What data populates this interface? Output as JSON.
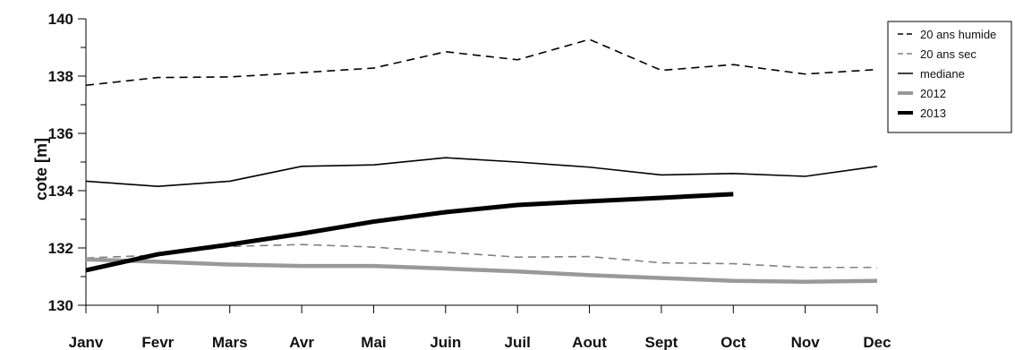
{
  "chart_data": {
    "type": "line",
    "title": "",
    "xlabel": "",
    "ylabel": "cote [m]",
    "categories": [
      "Janv",
      "Fevr",
      "Mars",
      "Avr",
      "Mai",
      "Juin",
      "Juil",
      "Aout",
      "Sept",
      "Oct",
      "Nov",
      "Dec"
    ],
    "ylim": [
      130,
      140
    ],
    "yticks": [
      130,
      132,
      134,
      136,
      138,
      140
    ],
    "grid": false,
    "legend_position": "top-right",
    "series": [
      {
        "name": "20 ans humide",
        "style": "dashed",
        "color": "#000000",
        "width": "thin",
        "values": [
          137.68,
          137.95,
          137.97,
          138.12,
          138.28,
          138.85,
          138.57,
          139.28,
          138.2,
          138.4,
          138.07,
          138.23
        ]
      },
      {
        "name": "20 ans sec",
        "style": "dashed",
        "color": "#808080",
        "width": "thin",
        "values": [
          131.65,
          131.75,
          132.05,
          132.12,
          132.03,
          131.85,
          131.68,
          131.7,
          131.48,
          131.45,
          131.32,
          131.32
        ]
      },
      {
        "name": "mediane",
        "style": "solid",
        "color": "#000000",
        "width": "thin",
        "values": [
          134.33,
          134.15,
          134.33,
          134.85,
          134.9,
          135.15,
          135.0,
          134.82,
          134.55,
          134.6,
          134.5,
          134.85
        ]
      },
      {
        "name": "2012",
        "style": "solid",
        "color": "#999999",
        "width": "thick",
        "values": [
          131.6,
          131.52,
          131.42,
          131.37,
          131.37,
          131.28,
          131.18,
          131.05,
          130.95,
          130.85,
          130.82,
          130.85
        ]
      },
      {
        "name": "2013",
        "style": "solid",
        "color": "#000000",
        "width": "thick",
        "values": [
          131.22,
          131.78,
          132.12,
          132.5,
          132.92,
          133.25,
          133.5,
          133.63,
          133.75,
          133.88,
          null,
          null
        ]
      }
    ]
  }
}
